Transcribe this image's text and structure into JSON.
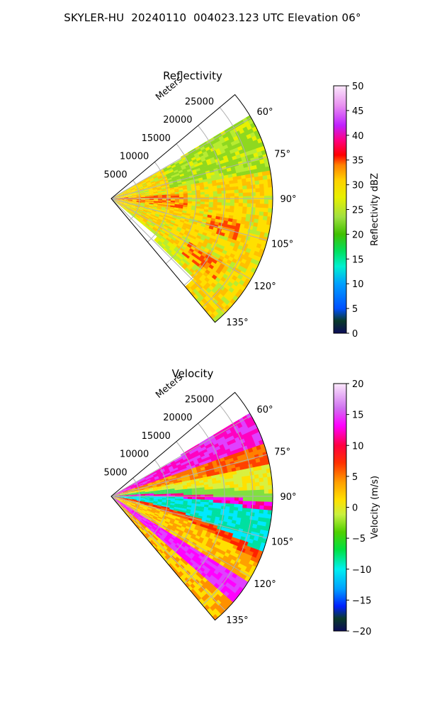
{
  "title": "SKYLER-HU  20240110  004023.123 UTC Elevation 06°",
  "chart_data": [
    {
      "type": "heatmap",
      "title": "Reflectivity",
      "radial_label": "Meters",
      "radial_ticks": [
        "5000",
        "10000",
        "15000",
        "20000",
        "25000"
      ],
      "radial_tick_values": [
        5000,
        10000,
        15000,
        20000,
        25000
      ],
      "radial_max": 28500,
      "azimuth_range": [
        50,
        140
      ],
      "azimuth_ticks": [
        "60°",
        "75°",
        "90°",
        "105°",
        "120°",
        "135°"
      ],
      "azimuth_tick_values": [
        60,
        75,
        90,
        105,
        120,
        135
      ],
      "colorbar": {
        "label": "Reflectivity dBZ",
        "range": [
          0,
          50
        ],
        "ticks": [
          "0",
          "5",
          "10",
          "15",
          "20",
          "25",
          "30",
          "35",
          "40",
          "45",
          "50"
        ],
        "tick_values": [
          0,
          5,
          10,
          15,
          20,
          25,
          30,
          35,
          40,
          45,
          50
        ]
      }
    },
    {
      "type": "heatmap",
      "title": "Velocity",
      "radial_label": "Meters",
      "radial_ticks": [
        "5000",
        "10000",
        "15000",
        "20000",
        "25000"
      ],
      "radial_tick_values": [
        5000,
        10000,
        15000,
        20000,
        25000
      ],
      "radial_max": 28500,
      "azimuth_range": [
        50,
        140
      ],
      "azimuth_ticks": [
        "60°",
        "75°",
        "90°",
        "105°",
        "120°",
        "135°"
      ],
      "azimuth_tick_values": [
        60,
        75,
        90,
        105,
        120,
        135
      ],
      "colorbar": {
        "label": "Velocity (m/s)",
        "range": [
          -20,
          20
        ],
        "ticks": [
          "20",
          "15",
          "10",
          "5",
          "0",
          "−5",
          "−10",
          "−15",
          "−20"
        ],
        "tick_values": [
          20,
          15,
          10,
          5,
          0,
          -5,
          -10,
          -15,
          -20
        ]
      }
    }
  ]
}
